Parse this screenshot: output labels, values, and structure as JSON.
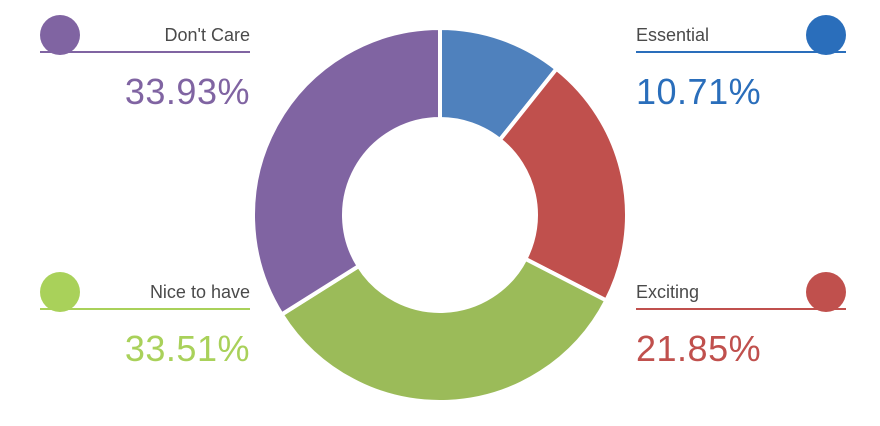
{
  "chart_data": {
    "type": "pie",
    "variant": "donut",
    "title": "",
    "categories": [
      "Essential",
      "Exciting",
      "Nice to have",
      "Don't Care"
    ],
    "values": [
      10.71,
      21.85,
      33.51,
      33.93
    ],
    "value_labels": [
      "10.71%",
      "21.85%",
      "33.51%",
      "33.93%"
    ],
    "colors": [
      "#4f81bd",
      "#c0504d",
      "#9bbb59",
      "#8064a2"
    ],
    "legend_colors": [
      "#2a6ebb",
      "#c0504d",
      "#a9d15a",
      "#8064a2"
    ],
    "value_colors": [
      "#2a6ebb",
      "#c0504d",
      "#a9d15a",
      "#8064a2"
    ],
    "legend": "corners"
  }
}
